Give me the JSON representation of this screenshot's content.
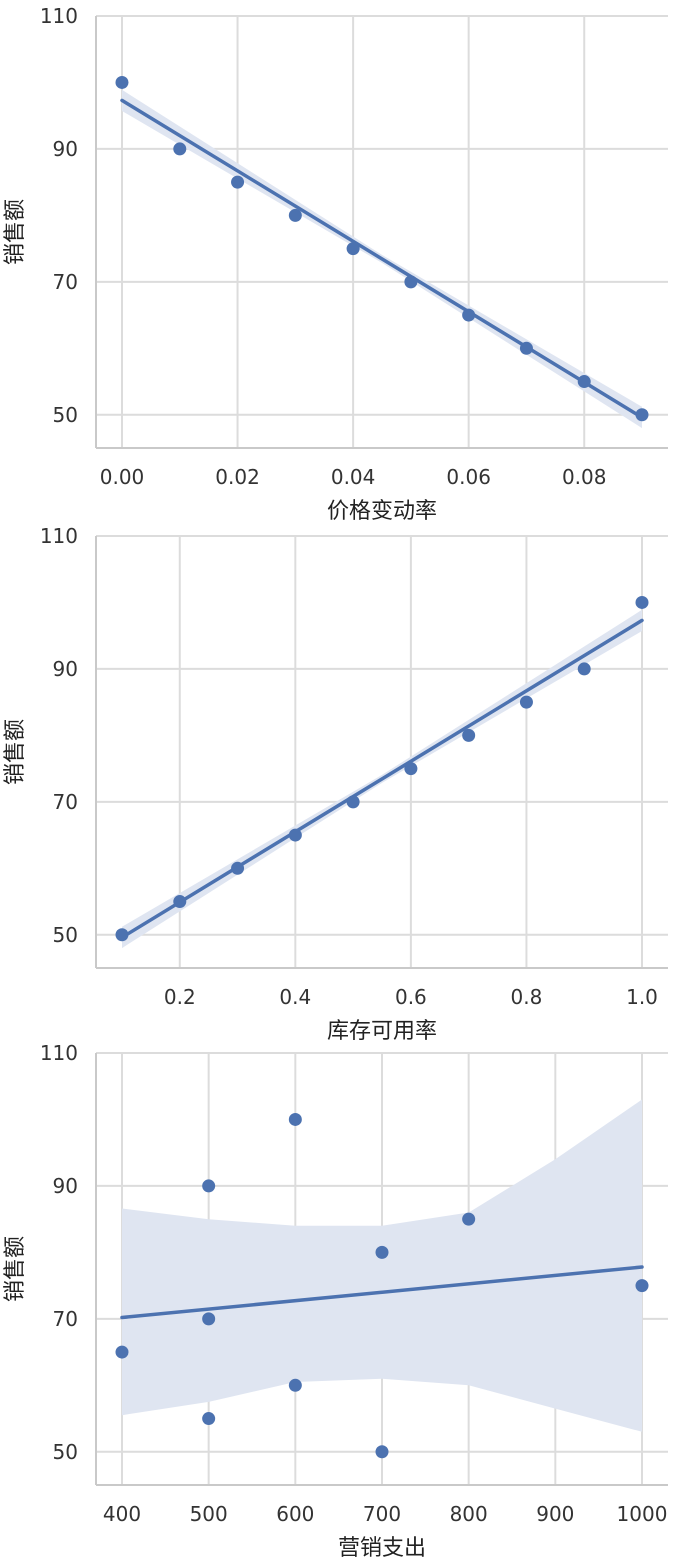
{
  "chart_data": [
    {
      "type": "scatter",
      "xlabel": "价格变动率",
      "ylabel": "销售额",
      "xlim": [
        -0.0045,
        0.0945
      ],
      "ylim": [
        45,
        110
      ],
      "xticks": [
        "0.00",
        "0.02",
        "0.04",
        "0.06",
        "0.08"
      ],
      "xtick_values": [
        0.0,
        0.02,
        0.04,
        0.06,
        0.08
      ],
      "yticks": [
        "50",
        "70",
        "90",
        "110"
      ],
      "ytick_values": [
        50,
        70,
        90,
        110
      ],
      "grid": true,
      "regression_line": true,
      "confidence_band": true,
      "series": [
        {
          "x": [
            0.0,
            0.01,
            0.02,
            0.03,
            0.04,
            0.05,
            0.06,
            0.07,
            0.08,
            0.09
          ],
          "y": [
            100,
            90,
            85,
            80,
            75,
            70,
            65,
            60,
            55,
            50
          ]
        }
      ],
      "fit": {
        "x": [
          0.0,
          0.09
        ],
        "y": [
          97.3,
          49.6
        ]
      },
      "band": {
        "x": [
          0.0,
          0.045,
          0.09
        ],
        "half_width": [
          1.6,
          0.6,
          1.6
        ]
      },
      "colors": {
        "points": "#4c72b0",
        "line": "#4c72b0",
        "band": "#dfe5f1"
      }
    },
    {
      "type": "scatter",
      "xlabel": "库存可用率",
      "ylabel": "销售额",
      "xlim": [
        0.055,
        1.045
      ],
      "ylim": [
        45,
        110
      ],
      "xticks": [
        "0.2",
        "0.4",
        "0.6",
        "0.8",
        "1.0"
      ],
      "xtick_values": [
        0.2,
        0.4,
        0.6,
        0.8,
        1.0
      ],
      "yticks": [
        "50",
        "70",
        "90",
        "110"
      ],
      "ytick_values": [
        50,
        70,
        90,
        110
      ],
      "grid": true,
      "regression_line": true,
      "confidence_band": true,
      "series": [
        {
          "x": [
            0.1,
            0.2,
            0.3,
            0.4,
            0.5,
            0.6,
            0.7,
            0.8,
            0.9,
            1.0
          ],
          "y": [
            50,
            55,
            60,
            65,
            70,
            75,
            80,
            85,
            90,
            100
          ]
        }
      ],
      "fit": {
        "x": [
          0.1,
          1.0
        ],
        "y": [
          49.6,
          97.3
        ]
      },
      "band": {
        "x": [
          0.1,
          0.55,
          1.0
        ],
        "half_width": [
          1.6,
          0.6,
          1.6
        ]
      },
      "colors": {
        "points": "#4c72b0",
        "line": "#4c72b0",
        "band": "#dfe5f1"
      }
    },
    {
      "type": "scatter",
      "xlabel": "营销支出",
      "ylabel": "销售额",
      "xlim": [
        370,
        1030
      ],
      "ylim": [
        45,
        110
      ],
      "xticks": [
        "400",
        "500",
        "600",
        "700",
        "800",
        "900",
        "1000"
      ],
      "xtick_values": [
        400,
        500,
        600,
        700,
        800,
        900,
        1000
      ],
      "yticks": [
        "50",
        "70",
        "90",
        "110"
      ],
      "ytick_values": [
        50,
        70,
        90,
        110
      ],
      "grid": true,
      "regression_line": true,
      "confidence_band": true,
      "series": [
        {
          "x": [
            400,
            500,
            500,
            500,
            600,
            600,
            700,
            700,
            800,
            1000
          ],
          "y": [
            65,
            90,
            70,
            55,
            100,
            60,
            80,
            50,
            85,
            75
          ]
        }
      ],
      "fit": {
        "x": [
          400,
          1000
        ],
        "y": [
          70.2,
          77.8
        ]
      },
      "band": {
        "x": [
          400,
          500,
          600,
          700,
          800,
          900,
          1000
        ],
        "upper": [
          86.6,
          85.0,
          84.0,
          84.0,
          86.0,
          94.0,
          103.0
        ],
        "lower": [
          55.5,
          57.5,
          60.5,
          61.0,
          60.0,
          56.5,
          53.0
        ]
      },
      "colors": {
        "points": "#4c72b0",
        "line": "#4c72b0",
        "band": "#dfe5f1"
      }
    }
  ]
}
